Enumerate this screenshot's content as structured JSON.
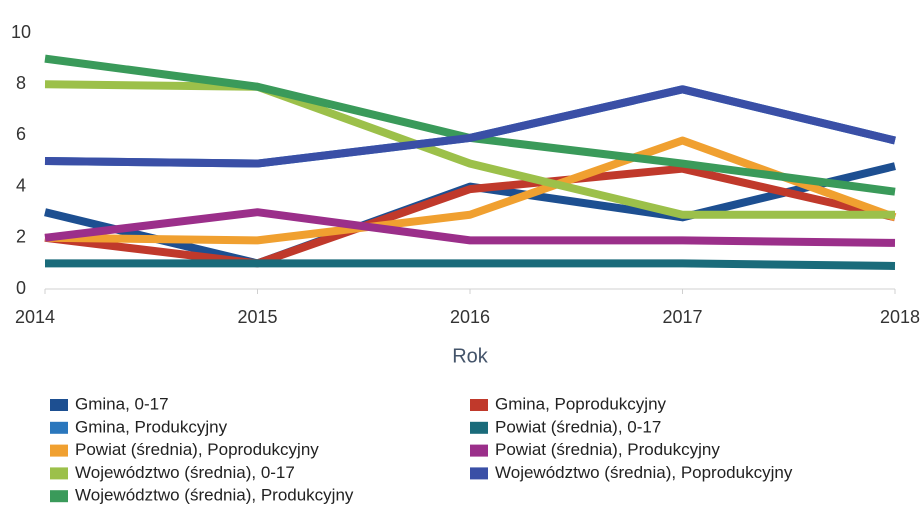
{
  "chart_data": {
    "type": "line",
    "x_label": "Rok",
    "x": [
      2014,
      2015,
      2016,
      2017,
      2018
    ],
    "xlim": [
      2014,
      2018
    ],
    "xticks": [
      2014,
      2015,
      2016,
      2017,
      2018
    ],
    "ylim": [
      0,
      10
    ],
    "yticks": [
      0,
      2,
      4,
      6,
      8,
      10
    ],
    "series": [
      {
        "name": "Gmina, 0-17",
        "color": "#1d4f91",
        "values": [
          3,
          1,
          4,
          2.8,
          4.8
        ]
      },
      {
        "name": "Gmina, Produkcyjny",
        "color": "#2a77bd",
        "values": [
          5,
          4.9,
          5.9,
          7.8,
          5.8
        ]
      },
      {
        "name": "Powiat (średnia), Poprodukcyjny",
        "color": "#f0a030",
        "values": [
          2,
          1.9,
          2.9,
          5.8,
          2.8
        ]
      },
      {
        "name": "Województwo (średnia), 0-17",
        "color": "#9cc04a",
        "values": [
          8,
          7.9,
          4.9,
          2.9,
          2.9
        ]
      },
      {
        "name": "Województwo (średnia), Produkcyjny",
        "color": "#3a9a5a",
        "values": [
          9,
          7.9,
          5.9,
          4.9,
          3.8
        ]
      },
      {
        "name": "Gmina, Poprodukcyjny",
        "color": "#c0392b",
        "values": [
          2,
          1,
          3.9,
          4.7,
          2.8
        ]
      },
      {
        "name": "Powiat (średnia), 0-17",
        "color": "#1a6b7a",
        "values": [
          1,
          1,
          1,
          1,
          0.9
        ]
      },
      {
        "name": "Powiat (średnia), Produkcyjny",
        "color": "#9b2f8a",
        "values": [
          2,
          3,
          1.9,
          1.9,
          1.8
        ]
      },
      {
        "name": "Województwo (średnia), Poprodukcyjny",
        "color": "#3a4fa6",
        "values": [
          5,
          4.9,
          5.9,
          7.8,
          5.8
        ]
      }
    ]
  }
}
